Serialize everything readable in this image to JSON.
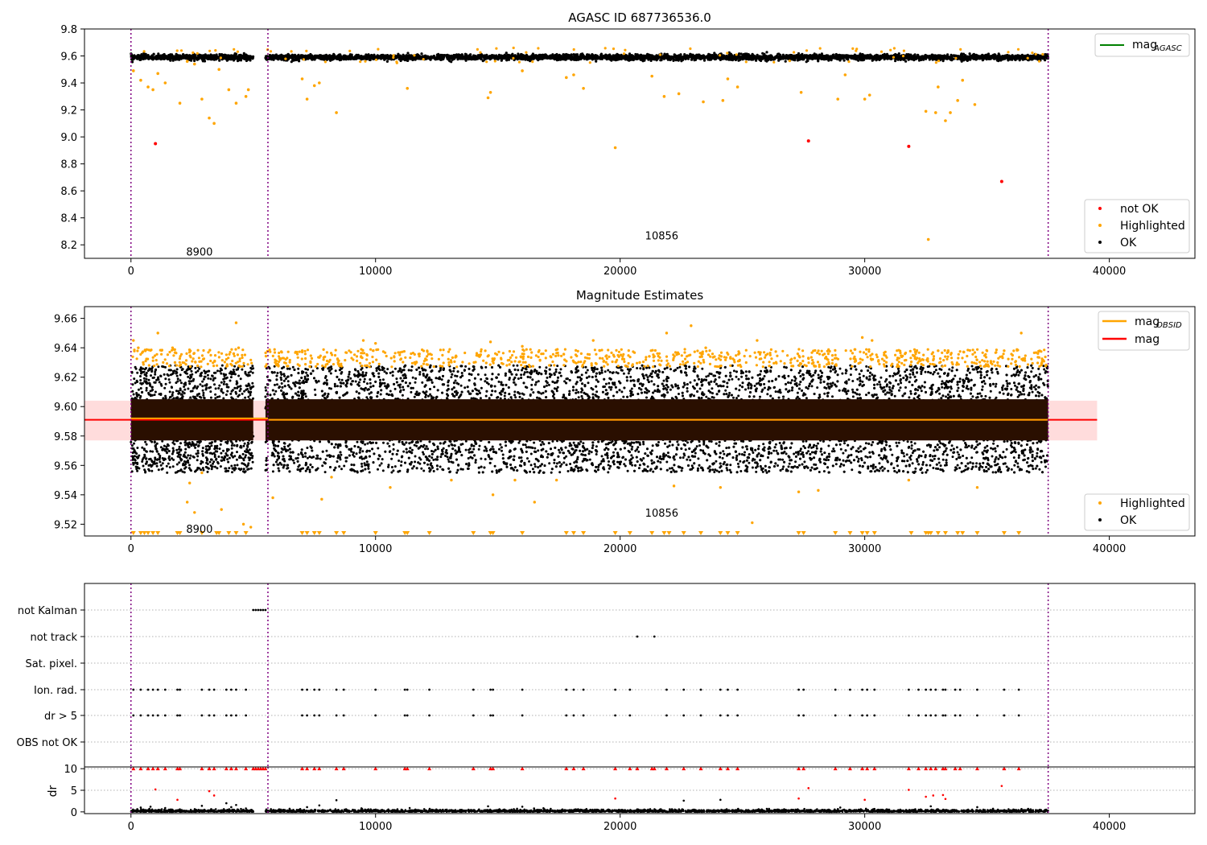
{
  "chart_data": [
    {
      "type": "scatter",
      "title": "AGASC ID 687736536.0",
      "xlim": [
        -1900,
        43500
      ],
      "ylim": [
        8.1,
        9.8
      ],
      "xticks": [
        0,
        10000,
        20000,
        30000,
        40000
      ],
      "yticks": [
        8.2,
        8.4,
        8.6,
        8.8,
        9.0,
        9.2,
        9.4,
        9.6,
        9.8
      ],
      "ytick_labels": [
        "8.2",
        "8.4",
        "8.6",
        "8.8",
        "9.0",
        "9.2",
        "9.4",
        "9.6",
        "9.8"
      ],
      "vlines": [
        0,
        5600,
        37500
      ],
      "annotations": [
        {
          "text": "8900",
          "x": 2800,
          "y": 8.15
        },
        {
          "text": "10856",
          "x": 21700,
          "y": 8.27
        }
      ],
      "legend_lines": [
        {
          "label": "mag",
          "sub": "AGASC",
          "color": "#008000"
        }
      ],
      "legend": {
        "position": "lower-right",
        "entries": [
          {
            "label": "not OK",
            "color": "#ff0000"
          },
          {
            "label": "Highlighted",
            "color": "#ffa500"
          },
          {
            "label": "OK",
            "color": "#000000"
          }
        ]
      },
      "ok_band": {
        "segments": [
          [
            0,
            5000
          ],
          [
            5500,
            37500
          ]
        ],
        "center": 9.59,
        "spread": 0.018
      },
      "highlighted": [
        [
          100,
          9.49
        ],
        [
          400,
          9.42
        ],
        [
          700,
          9.37
        ],
        [
          900,
          9.35
        ],
        [
          1100,
          9.47
        ],
        [
          1400,
          9.4
        ],
        [
          2000,
          9.25
        ],
        [
          2300,
          9.56
        ],
        [
          2600,
          9.54
        ],
        [
          2900,
          9.28
        ],
        [
          3200,
          9.14
        ],
        [
          3400,
          9.1
        ],
        [
          3600,
          9.5
        ],
        [
          4000,
          9.35
        ],
        [
          4300,
          9.25
        ],
        [
          4700,
          9.3
        ],
        [
          4800,
          9.35
        ],
        [
          7000,
          9.43
        ],
        [
          7200,
          9.28
        ],
        [
          7500,
          9.38
        ],
        [
          7700,
          9.4
        ],
        [
          8400,
          9.18
        ],
        [
          11300,
          9.36
        ],
        [
          14600,
          9.29
        ],
        [
          14700,
          9.33
        ],
        [
          16000,
          9.49
        ],
        [
          17800,
          9.44
        ],
        [
          18100,
          9.46
        ],
        [
          18500,
          9.36
        ],
        [
          19800,
          8.92
        ],
        [
          21300,
          9.45
        ],
        [
          21800,
          9.3
        ],
        [
          22400,
          9.32
        ],
        [
          23400,
          9.26
        ],
        [
          24200,
          9.27
        ],
        [
          24400,
          9.43
        ],
        [
          24800,
          9.37
        ],
        [
          27400,
          9.33
        ],
        [
          28900,
          9.28
        ],
        [
          29200,
          9.46
        ],
        [
          30000,
          9.28
        ],
        [
          30200,
          9.31
        ],
        [
          32500,
          9.19
        ],
        [
          32600,
          8.24
        ],
        [
          32900,
          9.18
        ],
        [
          33000,
          9.37
        ],
        [
          33300,
          9.12
        ],
        [
          33500,
          9.18
        ],
        [
          33800,
          9.27
        ],
        [
          34000,
          9.42
        ],
        [
          34500,
          9.24
        ]
      ],
      "not_ok": [
        [
          1000,
          8.95
        ],
        [
          27700,
          8.97
        ],
        [
          31800,
          8.93
        ],
        [
          35600,
          8.67
        ]
      ]
    },
    {
      "type": "scatter",
      "title": "Magnitude Estimates",
      "xlim": [
        -1900,
        43500
      ],
      "ylim": [
        9.512,
        9.668
      ],
      "xticks": [
        0,
        10000,
        20000,
        30000,
        40000
      ],
      "yticks": [
        9.52,
        9.54,
        9.56,
        9.58,
        9.6,
        9.62,
        9.64,
        9.66
      ],
      "ytick_labels": [
        "9.52",
        "9.54",
        "9.56",
        "9.58",
        "9.60",
        "9.62",
        "9.64",
        "9.66"
      ],
      "vlines": [
        0,
        5600,
        37500
      ],
      "annotations": [
        {
          "text": "8900",
          "x": 2800,
          "y": 9.517
        },
        {
          "text": "10856",
          "x": 21700,
          "y": 9.528
        }
      ],
      "legend_lines": [
        {
          "label": "mag",
          "sub": "OBSID",
          "color": "#ffa500"
        },
        {
          "label": "mag",
          "sub": "",
          "color": "#ff0000"
        }
      ],
      "legend": {
        "position": "lower-right",
        "entries": [
          {
            "label": "Highlighted",
            "color": "#ffa500"
          },
          {
            "label": "OK",
            "color": "#000000"
          }
        ]
      },
      "mag_line": {
        "y": 9.591,
        "band": [
          9.577,
          9.604
        ],
        "x_extent": [
          -1900,
          39500
        ]
      },
      "obsid_line": {
        "segments": [
          [
            0,
            5600,
            9.592
          ],
          [
            5600,
            37500,
            9.591
          ]
        ]
      },
      "ok_band": {
        "segments": [
          [
            0,
            5000
          ],
          [
            5500,
            37500
          ]
        ],
        "center": 9.591,
        "core": [
          9.577,
          9.605
        ],
        "spread": [
          9.555,
          9.628
        ]
      },
      "floor_markers_x": [
        100,
        400,
        550,
        700,
        900,
        1100,
        1900,
        2000,
        2900,
        3500,
        3600,
        4000,
        4300,
        4700,
        7000,
        7200,
        7500,
        7700,
        8400,
        8700,
        10000,
        11200,
        11300,
        12200,
        14000,
        14700,
        14800,
        16000,
        17800,
        18100,
        18500,
        19800,
        20400,
        21300,
        21800,
        22000,
        22600,
        23300,
        24100,
        24400,
        24800,
        27300,
        27500,
        28800,
        29400,
        29900,
        30100,
        30400,
        31900,
        32500,
        32600,
        32700,
        33000,
        33300,
        33800,
        34000,
        34600,
        35700,
        36300
      ],
      "highlighted": [
        [
          100,
          9.645
        ],
        [
          300,
          9.64
        ],
        [
          500,
          9.63
        ],
        [
          1100,
          9.65
        ],
        [
          1700,
          9.64
        ],
        [
          1800,
          9.63
        ],
        [
          2300,
          9.535
        ],
        [
          2400,
          9.548
        ],
        [
          2600,
          9.528
        ],
        [
          2900,
          9.555
        ],
        [
          3700,
          9.53
        ],
        [
          4200,
          9.636
        ],
        [
          4300,
          9.657
        ],
        [
          4400,
          9.64
        ],
        [
          4600,
          9.52
        ],
        [
          4900,
          9.518
        ],
        [
          5800,
          9.538
        ],
        [
          7800,
          9.537
        ],
        [
          8200,
          9.552
        ],
        [
          9500,
          9.645
        ],
        [
          10000,
          9.643
        ],
        [
          10600,
          9.545
        ],
        [
          13100,
          9.55
        ],
        [
          14700,
          9.644
        ],
        [
          14800,
          9.54
        ],
        [
          15700,
          9.55
        ],
        [
          16000,
          9.641
        ],
        [
          16500,
          9.535
        ],
        [
          17400,
          9.55
        ],
        [
          18900,
          9.645
        ],
        [
          20800,
          9.63
        ],
        [
          21900,
          9.65
        ],
        [
          22200,
          9.546
        ],
        [
          22900,
          9.655
        ],
        [
          23500,
          9.64
        ],
        [
          24100,
          9.545
        ],
        [
          25400,
          9.521
        ],
        [
          25600,
          9.645
        ],
        [
          27300,
          9.542
        ],
        [
          28100,
          9.543
        ],
        [
          29900,
          9.647
        ],
        [
          30300,
          9.645
        ],
        [
          31800,
          9.55
        ],
        [
          33000,
          9.638
        ],
        [
          34600,
          9.545
        ],
        [
          35700,
          9.638
        ],
        [
          36400,
          9.65
        ]
      ]
    },
    {
      "type": "scatter",
      "xlim": [
        -1900,
        43500
      ],
      "xticks": [
        0,
        10000,
        20000,
        30000,
        40000
      ],
      "vlines": [
        0,
        5600,
        37500
      ],
      "flag_rows": [
        "not Kalman",
        "not track",
        "Sat. pixel.",
        "Ion. rad.",
        "dr > 5",
        "OBS not OK"
      ],
      "flag_points": {
        "not Kalman": [
          5000,
          5100,
          5200,
          5300,
          5400,
          5500
        ],
        "not track": [
          20700,
          21400
        ],
        "Sat. pixel.": [],
        "Ion. rad.": [
          100,
          400,
          700,
          900,
          1100,
          1400,
          1900,
          2000,
          2900,
          3200,
          3400,
          3900,
          4100,
          4300,
          4700,
          7000,
          7200,
          7500,
          7700,
          8400,
          8700,
          10000,
          11200,
          11300,
          12200,
          14000,
          14700,
          14800,
          16000,
          17800,
          18100,
          18500,
          19800,
          20400,
          21900,
          22600,
          23300,
          24100,
          24400,
          24800,
          27300,
          27500,
          28800,
          29400,
          29900,
          30100,
          30400,
          31800,
          32200,
          32500,
          32700,
          32900,
          33200,
          33300,
          33700,
          33900,
          34600,
          35700,
          36300
        ],
        "dr > 5": [
          100,
          400,
          700,
          900,
          1100,
          1400,
          1900,
          2000,
          2900,
          3200,
          3400,
          3900,
          4100,
          4300,
          4700,
          7000,
          7200,
          7500,
          7700,
          8400,
          8700,
          10000,
          11200,
          11300,
          12200,
          14000,
          14700,
          14800,
          16000,
          17800,
          18100,
          18500,
          19800,
          20400,
          21900,
          22600,
          23300,
          24100,
          24400,
          24800,
          27300,
          27500,
          28800,
          29400,
          29900,
          30100,
          30400,
          31800,
          32200,
          32500,
          32700,
          32900,
          33200,
          33300,
          33700,
          33900,
          34600,
          35700,
          36300
        ],
        "OBS not OK": []
      },
      "ylabel": "dr",
      "ylim": [
        -0.4,
        10.4
      ],
      "yticks": [
        0,
        5,
        10
      ],
      "ytick_labels": [
        "0",
        "5",
        "10"
      ],
      "dr_red_points": [
        [
          1000,
          5.2
        ],
        [
          1900,
          2.8
        ],
        [
          3200,
          4.8
        ],
        [
          3400,
          3.8
        ],
        [
          19800,
          3.1
        ],
        [
          27300,
          3.1
        ],
        [
          27700,
          5.5
        ],
        [
          30000,
          2.8
        ],
        [
          31800,
          5.1
        ],
        [
          32500,
          3.5
        ],
        [
          32800,
          3.8
        ],
        [
          33200,
          3.9
        ],
        [
          33300,
          3.0
        ],
        [
          35600,
          6.0
        ]
      ],
      "dr_black_points": [
        [
          400,
          1.0
        ],
        [
          800,
          1.2
        ],
        [
          1400,
          0.9
        ],
        [
          2000,
          0.6
        ],
        [
          2900,
          1.4
        ],
        [
          3900,
          2.0
        ],
        [
          4100,
          1.1
        ],
        [
          4300,
          1.6
        ],
        [
          4700,
          0.8
        ],
        [
          7200,
          1.1
        ],
        [
          7700,
          1.5
        ],
        [
          8400,
          2.7
        ],
        [
          14600,
          1.3
        ],
        [
          16000,
          1.2
        ],
        [
          22600,
          2.6
        ],
        [
          24100,
          2.8
        ],
        [
          29000,
          1.0
        ],
        [
          32700,
          1.3
        ],
        [
          34600,
          1.1
        ]
      ],
      "dr_capped_x": [
        100,
        400,
        700,
        900,
        1100,
        1400,
        1900,
        2000,
        2900,
        3200,
        3400,
        3900,
        4100,
        4300,
        4700,
        5000,
        5100,
        5200,
        5300,
        5400,
        5500,
        7000,
        7200,
        7500,
        7700,
        8400,
        8700,
        10000,
        11200,
        11300,
        12200,
        14000,
        14700,
        14800,
        16000,
        17800,
        18100,
        18500,
        19800,
        20400,
        20700,
        21300,
        21400,
        21900,
        22600,
        23300,
        24100,
        24400,
        24800,
        27300,
        27500,
        28800,
        29400,
        29900,
        30100,
        30400,
        31800,
        32200,
        32500,
        32700,
        32900,
        33200,
        33300,
        33700,
        33900,
        34600,
        35700,
        36300
      ]
    }
  ]
}
